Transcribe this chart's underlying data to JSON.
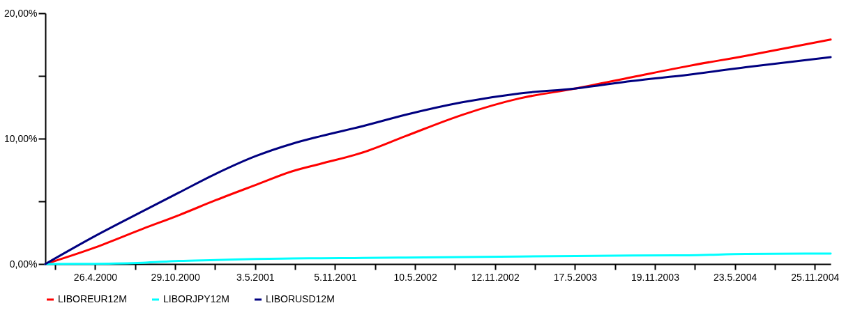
{
  "chart_data": {
    "type": "line",
    "x": [
      "2000-01-01",
      "2000-04-24",
      "2000-08-14",
      "2000-11-07",
      "2001-02-01",
      "2001-05-04",
      "2001-07-29",
      "2001-10-03",
      "2002-01-09",
      "2002-04-18",
      "2002-08-28",
      "2003-01-07",
      "2003-05-19",
      "2003-09-27",
      "2004-02-06",
      "2004-06-17",
      "2005-01-01"
    ],
    "series": [
      {
        "name": "LIBOREUR12M",
        "color": "#ff0000",
        "values": [
          0,
          1.3,
          2.8,
          3.9,
          5.1,
          6.3,
          7.4,
          8.0,
          8.9,
          10.2,
          11.9,
          13.2,
          14.0,
          14.9,
          15.8,
          16.6,
          17.9
        ]
      },
      {
        "name": "LIBORJPY12M",
        "color": "#00ffff",
        "values": [
          0,
          0.02,
          0.1,
          0.25,
          0.32,
          0.4,
          0.44,
          0.46,
          0.48,
          0.52,
          0.56,
          0.6,
          0.64,
          0.68,
          0.7,
          0.8,
          0.84
        ]
      },
      {
        "name": "LIBORUSD12M",
        "color": "#000080",
        "values": [
          0,
          2.2,
          4.2,
          5.7,
          7.2,
          8.6,
          9.6,
          10.2,
          11.0,
          11.9,
          12.9,
          13.6,
          14.0,
          14.6,
          15.1,
          15.7,
          16.5
        ]
      }
    ],
    "xlim": [
      "2000-01-01",
      "2005-01-01"
    ],
    "xticks": [
      {
        "value": "2000-01-24",
        "label": null
      },
      {
        "value": "2000-04-26",
        "label": "26.4.2000"
      },
      {
        "value": "2000-07-28",
        "label": null
      },
      {
        "value": "2000-10-29",
        "label": "29.10.2000"
      },
      {
        "value": "2001-01-30",
        "label": null
      },
      {
        "value": "2001-05-03",
        "label": "3.5.2001"
      },
      {
        "value": "2001-08-04",
        "label": null
      },
      {
        "value": "2001-11-05",
        "label": "5.11.2001"
      },
      {
        "value": "2002-02-06",
        "label": null
      },
      {
        "value": "2002-05-10",
        "label": "10.5.2002"
      },
      {
        "value": "2002-08-11",
        "label": null
      },
      {
        "value": "2002-11-12",
        "label": "12.11.2002"
      },
      {
        "value": "2003-02-13",
        "label": null
      },
      {
        "value": "2003-05-17",
        "label": "17.5.2003"
      },
      {
        "value": "2003-08-18",
        "label": null
      },
      {
        "value": "2003-11-19",
        "label": "19.11.2003"
      },
      {
        "value": "2004-02-20",
        "label": null
      },
      {
        "value": "2004-05-23",
        "label": "23.5.2004"
      },
      {
        "value": "2004-08-24",
        "label": null
      },
      {
        "value": "2004-11-25",
        "label": "25.11.2004"
      }
    ],
    "ylim": [
      0,
      20
    ],
    "yticks": [
      {
        "value": 0,
        "label": "0,00%"
      },
      {
        "value": 5,
        "label": null
      },
      {
        "value": 10,
        "label": "10,00%"
      },
      {
        "value": 15,
        "label": null
      },
      {
        "value": 20,
        "label": "20,00%"
      }
    ],
    "grid": false,
    "legend": "bottom"
  }
}
